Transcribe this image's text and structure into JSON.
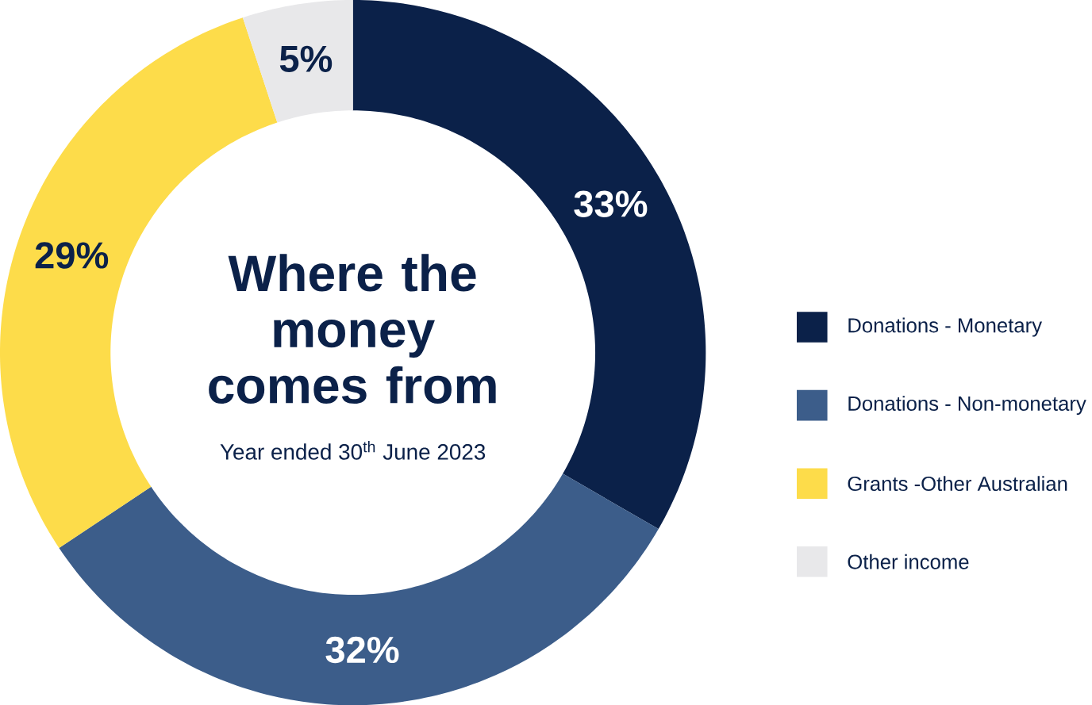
{
  "chart_data": {
    "type": "donut",
    "title": "Where the money comes from",
    "subtitle": "Year ended 30$^{th}$ June 2023",
    "categories": [
      "Donations - Monetary",
      "Donations - Non-monetary",
      "Grants -Other Australian",
      "Other income"
    ],
    "values": [
      33,
      32,
      29,
      5
    ],
    "colors": [
      "#0b2149",
      "#3c5d8a",
      "#fddc4a",
      "#e8e8ea"
    ],
    "value_labels": [
      "33%",
      "32%",
      "29%",
      "5%"
    ],
    "legend": "right"
  }
}
